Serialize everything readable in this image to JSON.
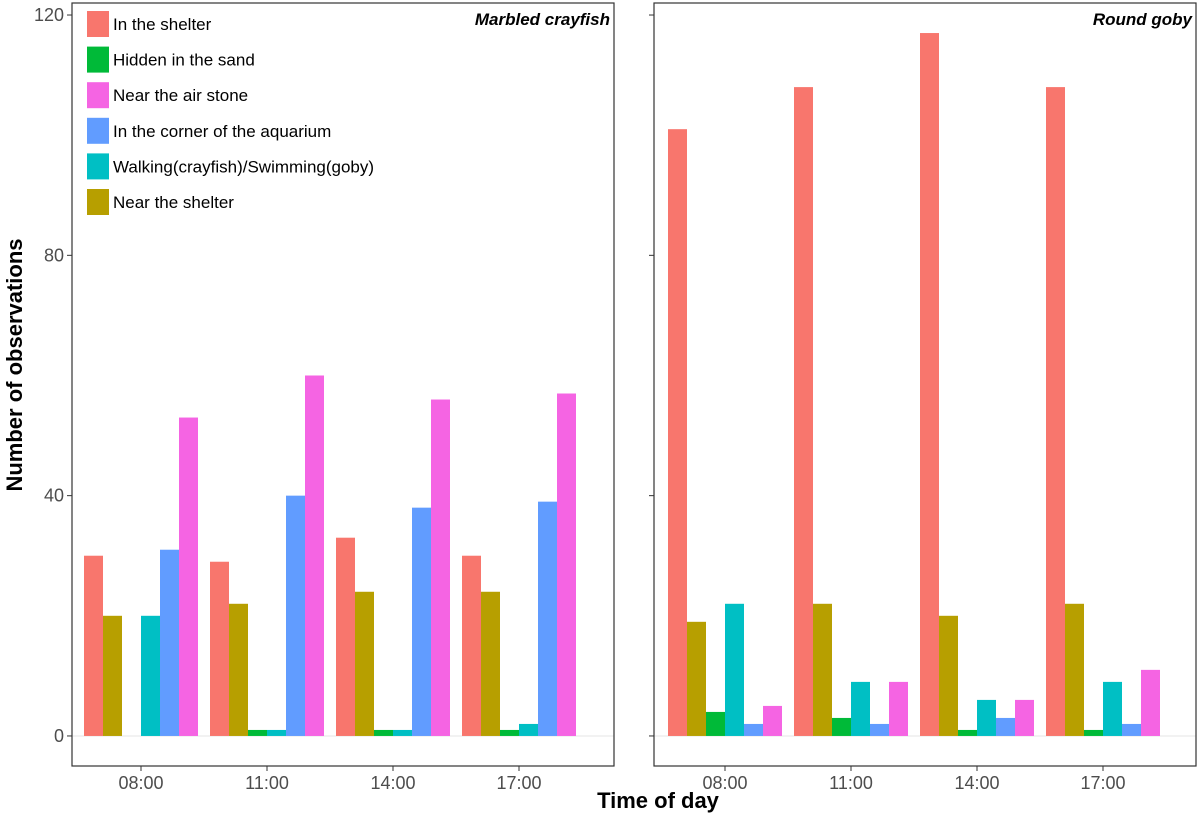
{
  "chart_data": {
    "type": "bar",
    "xlabel": "Time of day",
    "ylabel": "Number of observations",
    "ylim": [
      -5,
      122
    ],
    "yticks": [
      0,
      40,
      80,
      120
    ],
    "categories": [
      "08:00",
      "11:00",
      "14:00",
      "17:00"
    ],
    "legend_position": "top-left",
    "series": [
      {
        "name": "In the shelter",
        "color": "#F8766D"
      },
      {
        "name": "Hidden in the sand",
        "color": "#00BA38"
      },
      {
        "name": "Near the air stone",
        "color": "#F564E3"
      },
      {
        "name": "In the corner of the aquarium",
        "color": "#619CFF"
      },
      {
        "name": "Walking(crayfish)/Swimming(goby)",
        "color": "#00BFC4"
      },
      {
        "name": "Near the shelter",
        "color": "#B79F00"
      }
    ],
    "bar_order": [
      "In the shelter",
      "Near the shelter",
      "Hidden in the sand",
      "Walking(crayfish)/Swimming(goby)",
      "In the corner of the aquarium",
      "Near the air stone"
    ],
    "panels": [
      {
        "title": "Marbled crayfish",
        "values": {
          "In the shelter": [
            30,
            29,
            33,
            30
          ],
          "Near the shelter": [
            20,
            22,
            24,
            24
          ],
          "Hidden in the sand": [
            0,
            1,
            1,
            1
          ],
          "Walking(crayfish)/Swimming(goby)": [
            20,
            1,
            1,
            2
          ],
          "In the corner of the aquarium": [
            31,
            40,
            38,
            39
          ],
          "Near the air stone": [
            53,
            60,
            56,
            57
          ]
        }
      },
      {
        "title": "Round goby",
        "values": {
          "In the shelter": [
            101,
            108,
            117,
            108
          ],
          "Near the shelter": [
            19,
            22,
            20,
            22
          ],
          "Hidden in the sand": [
            4,
            3,
            1,
            1
          ],
          "Walking(crayfish)/Swimming(goby)": [
            22,
            9,
            6,
            9
          ],
          "In the corner of the aquarium": [
            2,
            2,
            3,
            2
          ],
          "Near the air stone": [
            5,
            9,
            6,
            11
          ]
        }
      }
    ]
  }
}
